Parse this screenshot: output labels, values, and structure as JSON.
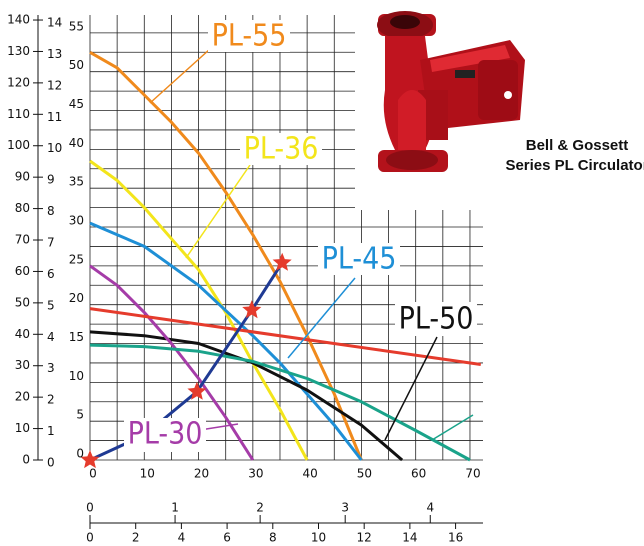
{
  "chart_data": {
    "type": "line",
    "xlim": [
      0,
      72.4
    ],
    "xticks": [
      0,
      10,
      20,
      30,
      40,
      50,
      60,
      70
    ],
    "xgrid": [
      0,
      5,
      10,
      15,
      20,
      25,
      30,
      35,
      40,
      45,
      50,
      55,
      60,
      65,
      70
    ],
    "ylim": [
      0,
      57.3
    ],
    "yticks": [
      0,
      5,
      10,
      15,
      20,
      25,
      30,
      35,
      40,
      45,
      50,
      55
    ],
    "ygrid": [
      0,
      2.5,
      5,
      7.5,
      10,
      12.5,
      15,
      17.5,
      20,
      22.5,
      25,
      27.5,
      30,
      32.5,
      35,
      37.5,
      40,
      42.5,
      45,
      47.5,
      50,
      52.5,
      55
    ],
    "y2lim": [
      0,
      14.16
    ],
    "y2ticks": [
      0,
      1,
      2,
      3,
      4,
      5,
      6,
      7,
      8,
      9,
      10,
      11,
      12,
      13,
      14
    ],
    "y3lim": [
      0,
      141.6
    ],
    "y3ticks": [
      0,
      10,
      20,
      30,
      40,
      50,
      60,
      70,
      80,
      90,
      100,
      110,
      120,
      130,
      140
    ],
    "x2lim": [
      0,
      4.62
    ],
    "x2ticks": [
      0,
      1,
      2,
      3,
      4
    ],
    "x3lim": [
      0,
      17.2
    ],
    "x3ticks": [
      0,
      2,
      4,
      6,
      8,
      10,
      12,
      14,
      16
    ],
    "grid": true,
    "series": [
      {
        "name": "PL-55",
        "color": "#f08a1c",
        "x": [
          0,
          5,
          10,
          15,
          20,
          25,
          30,
          35,
          40,
          45,
          50
        ],
        "values": [
          52.5,
          50.5,
          47,
          43.5,
          39.5,
          34.5,
          29,
          23,
          16,
          8.5,
          0
        ]
      },
      {
        "name": "PL-36",
        "color": "#f3e51b",
        "x": [
          0,
          5,
          10,
          15,
          20,
          25,
          30,
          35,
          40
        ],
        "values": [
          38.5,
          36,
          32.5,
          28.5,
          24.5,
          19,
          12.5,
          6.5,
          0
        ]
      },
      {
        "name": "PL-45",
        "color": "#1e8fd6",
        "x": [
          0,
          10,
          20,
          30,
          35,
          40,
          45,
          50
        ],
        "values": [
          30.5,
          27.5,
          22.5,
          16,
          12.5,
          8.5,
          4.5,
          0
        ]
      },
      {
        "name": "PL-50",
        "color": "#111111",
        "x": [
          0,
          10,
          20,
          30,
          40,
          50,
          57.5
        ],
        "values": [
          16.5,
          16,
          15,
          12.5,
          9,
          4.5,
          0
        ]
      },
      {
        "name": "PL-30",
        "color": "#a53ca8",
        "x": [
          0,
          5,
          10,
          15,
          20,
          25,
          30
        ],
        "values": [
          25,
          22.5,
          19,
          15,
          10.5,
          5.5,
          0
        ]
      },
      {
        "color": "#e53b2c",
        "x": [
          0,
          72
        ],
        "values": [
          19.5,
          12.3
        ]
      },
      {
        "color": "#1aa38a",
        "x": [
          0,
          10,
          20,
          30,
          40,
          50,
          60,
          70
        ],
        "values": [
          14.8,
          14.6,
          14,
          12.7,
          10.5,
          7.5,
          3.8,
          0
        ]
      },
      {
        "color": "#1f3a93",
        "x": [
          0,
          10,
          19.7,
          29.8,
          35.4
        ],
        "values": [
          0,
          3.2,
          8.8,
          19.3,
          25.4
        ]
      },
      {
        "color": "#e53b2c",
        "marker": "star",
        "x": [
          0,
          19.7,
          29.8,
          35.4
        ],
        "values": [
          0,
          8.8,
          19.3,
          25.4
        ]
      }
    ]
  },
  "caption": {
    "line1": "Bell & Gossett",
    "line2": "Series PL Circulator"
  }
}
